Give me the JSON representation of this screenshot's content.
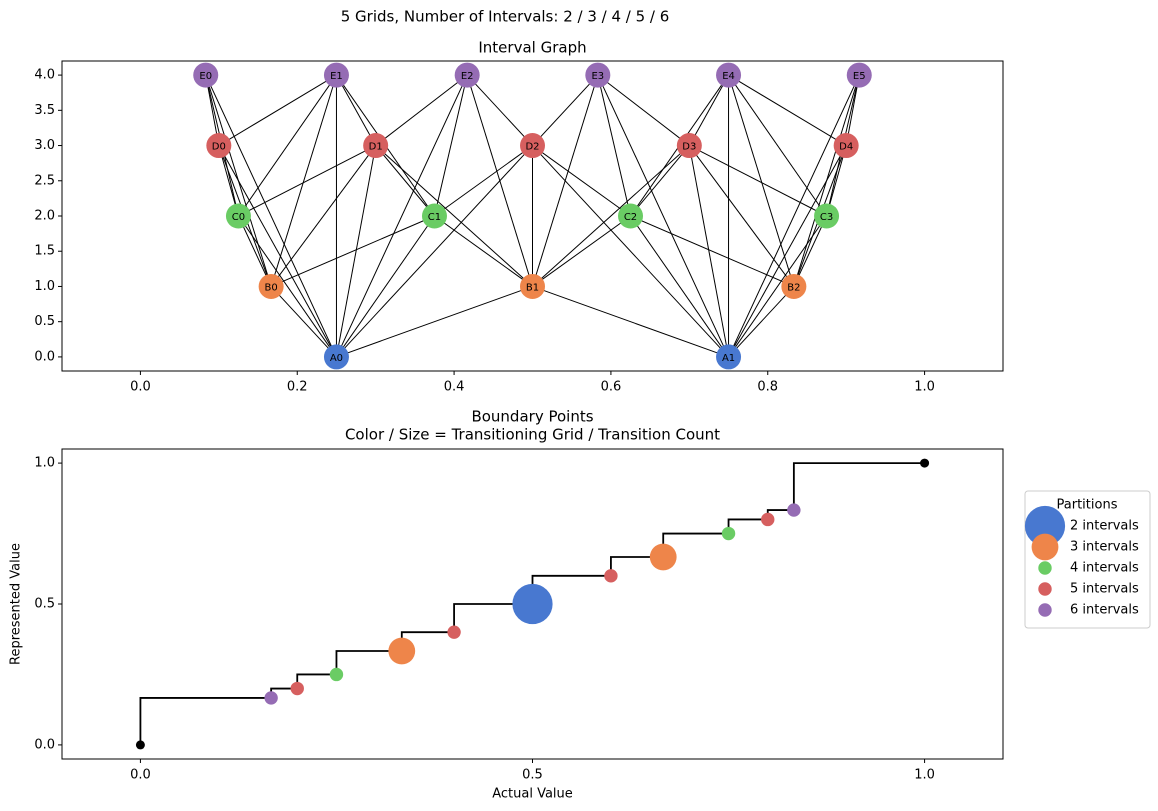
{
  "title": "5 Grids, Number of Intervals: 2 / 3 / 4 / 5 / 6",
  "chart_data": [
    {
      "type": "graph",
      "title": "Interval Graph",
      "xlim": [
        -0.1,
        1.1
      ],
      "ylim": [
        -0.2,
        4.2
      ],
      "xticks": [
        {
          "value": 0,
          "label": "0.0"
        },
        {
          "value": 0.2,
          "label": "0.2"
        },
        {
          "value": 0.4,
          "label": "0.4"
        },
        {
          "value": 0.6,
          "label": "0.6"
        },
        {
          "value": 0.8,
          "label": "0.8"
        },
        {
          "value": 1,
          "label": "1.0"
        }
      ],
      "yticks": [
        {
          "value": 0,
          "label": "0.0"
        },
        {
          "value": 0.5,
          "label": "0.5"
        },
        {
          "value": 1,
          "label": "1.0"
        },
        {
          "value": 1.5,
          "label": "1.5"
        },
        {
          "value": 2,
          "label": "2.0"
        },
        {
          "value": 2.5,
          "label": "2.5"
        },
        {
          "value": 3,
          "label": "3.0"
        },
        {
          "value": 3.5,
          "label": "3.5"
        },
        {
          "value": 4,
          "label": "4.0"
        }
      ],
      "nodes": [
        {
          "label": "A0",
          "x": 0.25,
          "y": 0,
          "color": "#4878d0"
        },
        {
          "label": "A1",
          "x": 0.75,
          "y": 0,
          "color": "#4878d0"
        },
        {
          "label": "B0",
          "x": 0.1667,
          "y": 1,
          "color": "#ee854a"
        },
        {
          "label": "B1",
          "x": 0.5,
          "y": 1,
          "color": "#ee854a"
        },
        {
          "label": "B2",
          "x": 0.8333,
          "y": 1,
          "color": "#ee854a"
        },
        {
          "label": "C0",
          "x": 0.125,
          "y": 2,
          "color": "#6acc64"
        },
        {
          "label": "C1",
          "x": 0.375,
          "y": 2,
          "color": "#6acc64"
        },
        {
          "label": "C2",
          "x": 0.625,
          "y": 2,
          "color": "#6acc64"
        },
        {
          "label": "C3",
          "x": 0.875,
          "y": 2,
          "color": "#6acc64"
        },
        {
          "label": "D0",
          "x": 0.1,
          "y": 3,
          "color": "#d65f5f"
        },
        {
          "label": "D1",
          "x": 0.3,
          "y": 3,
          "color": "#d65f5f"
        },
        {
          "label": "D2",
          "x": 0.5,
          "y": 3,
          "color": "#d65f5f"
        },
        {
          "label": "D3",
          "x": 0.7,
          "y": 3,
          "color": "#d65f5f"
        },
        {
          "label": "D4",
          "x": 0.9,
          "y": 3,
          "color": "#d65f5f"
        },
        {
          "label": "E0",
          "x": 0.0833,
          "y": 4,
          "color": "#956cb4"
        },
        {
          "label": "E1",
          "x": 0.25,
          "y": 4,
          "color": "#956cb4"
        },
        {
          "label": "E2",
          "x": 0.4167,
          "y": 4,
          "color": "#956cb4"
        },
        {
          "label": "E3",
          "x": 0.5833,
          "y": 4,
          "color": "#956cb4"
        },
        {
          "label": "E4",
          "x": 0.75,
          "y": 4,
          "color": "#956cb4"
        },
        {
          "label": "E5",
          "x": 0.9167,
          "y": 4,
          "color": "#956cb4"
        }
      ],
      "edges": [
        [
          0,
          2
        ],
        [
          0,
          3
        ],
        [
          0,
          5
        ],
        [
          0,
          6
        ],
        [
          0,
          9
        ],
        [
          0,
          10
        ],
        [
          0,
          11
        ],
        [
          0,
          14
        ],
        [
          0,
          15
        ],
        [
          0,
          16
        ],
        [
          1,
          3
        ],
        [
          1,
          4
        ],
        [
          1,
          7
        ],
        [
          1,
          8
        ],
        [
          1,
          11
        ],
        [
          1,
          12
        ],
        [
          1,
          13
        ],
        [
          1,
          17
        ],
        [
          1,
          18
        ],
        [
          1,
          19
        ],
        [
          2,
          5
        ],
        [
          2,
          6
        ],
        [
          2,
          9
        ],
        [
          2,
          10
        ],
        [
          2,
          14
        ],
        [
          2,
          15
        ],
        [
          3,
          6
        ],
        [
          3,
          7
        ],
        [
          3,
          10
        ],
        [
          3,
          11
        ],
        [
          3,
          12
        ],
        [
          3,
          16
        ],
        [
          3,
          17
        ],
        [
          4,
          7
        ],
        [
          4,
          8
        ],
        [
          4,
          12
        ],
        [
          4,
          13
        ],
        [
          4,
          18
        ],
        [
          4,
          19
        ],
        [
          5,
          9
        ],
        [
          5,
          10
        ],
        [
          5,
          14
        ],
        [
          5,
          15
        ],
        [
          6,
          10
        ],
        [
          6,
          11
        ],
        [
          6,
          15
        ],
        [
          6,
          16
        ],
        [
          7,
          11
        ],
        [
          7,
          12
        ],
        [
          7,
          17
        ],
        [
          7,
          18
        ],
        [
          8,
          12
        ],
        [
          8,
          13
        ],
        [
          8,
          18
        ],
        [
          8,
          19
        ],
        [
          9,
          14
        ],
        [
          9,
          15
        ],
        [
          10,
          15
        ],
        [
          10,
          16
        ],
        [
          11,
          16
        ],
        [
          11,
          17
        ],
        [
          12,
          17
        ],
        [
          12,
          18
        ],
        [
          13,
          18
        ],
        [
          13,
          19
        ]
      ]
    },
    {
      "type": "scatter",
      "title": "Boundary Points",
      "subtitle": "Color / Size = Transitioning Grid / Transition Count",
      "xlabel": "Actual Value",
      "ylabel": "Represented Value",
      "xlim": [
        -0.1,
        1.1
      ],
      "ylim": [
        -0.05,
        1.05
      ],
      "xticks": [
        {
          "value": 0,
          "label": "0.0"
        },
        {
          "value": 0.5,
          "label": "0.5"
        },
        {
          "value": 1,
          "label": "1.0"
        }
      ],
      "yticks": [
        {
          "value": 0,
          "label": "0.0"
        },
        {
          "value": 0.5,
          "label": "0.5"
        },
        {
          "value": 1,
          "label": "1.0"
        }
      ],
      "legend_title": "Partitions",
      "legend": "right outside",
      "step": {
        "color": "#000000",
        "x": [
          0,
          0,
          0.1667,
          0.1667,
          0.2,
          0.2,
          0.25,
          0.25,
          0.3333,
          0.3333,
          0.4,
          0.4,
          0.5,
          0.5,
          0.6,
          0.6,
          0.6667,
          0.6667,
          0.75,
          0.75,
          0.8,
          0.8,
          0.8333,
          0.8333,
          1
        ],
        "values": [
          0,
          0.1667,
          0.1667,
          0.2,
          0.2,
          0.25,
          0.25,
          0.3333,
          0.3333,
          0.4,
          0.4,
          0.5,
          0.5,
          0.6,
          0.6,
          0.6667,
          0.6667,
          0.75,
          0.75,
          0.8,
          0.8,
          0.8333,
          0.8333,
          1,
          1
        ]
      },
      "endpoints": {
        "color": "#000000",
        "x": [
          0,
          1
        ],
        "values": [
          0,
          1
        ]
      },
      "series": [
        {
          "name": "2 intervals",
          "color": "#4878d0",
          "x": [
            0.5
          ],
          "values": [
            0.5
          ],
          "sizes": [
            3
          ]
        },
        {
          "name": "3 intervals",
          "color": "#ee854a",
          "x": [
            0.3333,
            0.6667
          ],
          "values": [
            0.3333,
            0.6667
          ],
          "sizes": [
            2,
            2
          ]
        },
        {
          "name": "4 intervals",
          "color": "#6acc64",
          "x": [
            0.25,
            0.75
          ],
          "values": [
            0.25,
            0.75
          ],
          "sizes": [
            1,
            1
          ]
        },
        {
          "name": "5 intervals",
          "color": "#d65f5f",
          "x": [
            0.2,
            0.4,
            0.6,
            0.8
          ],
          "values": [
            0.2,
            0.4,
            0.6,
            0.8
          ],
          "sizes": [
            1,
            1,
            1,
            1
          ]
        },
        {
          "name": "6 intervals",
          "color": "#956cb4",
          "x": [
            0.1667,
            0.8333
          ],
          "values": [
            0.1667,
            0.8333
          ],
          "sizes": [
            1,
            1
          ]
        }
      ]
    }
  ]
}
